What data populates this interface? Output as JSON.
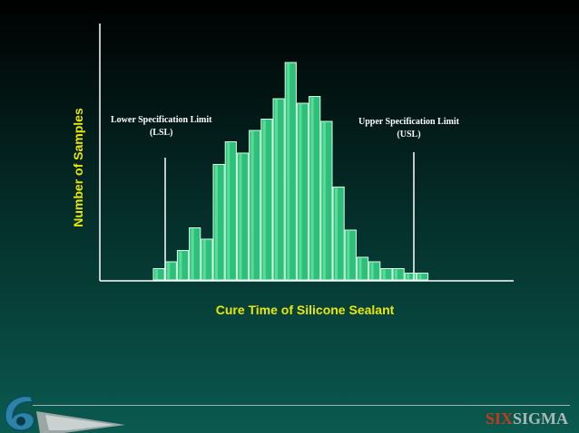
{
  "chart_data": {
    "type": "bar",
    "title": "",
    "xlabel": "Cure Time of Silicone Sealant",
    "ylabel": "Number of Samples",
    "ylim": [
      0,
      100
    ],
    "values": [
      5,
      8,
      13,
      23,
      18,
      51,
      61,
      56,
      66,
      71,
      80,
      96,
      78,
      81,
      70,
      41,
      22,
      10,
      8,
      5,
      5,
      3,
      3
    ],
    "grid": false,
    "annotations": [
      {
        "lines": [
          "Lower Specification Limit",
          "(LSL)"
        ]
      },
      {
        "lines": [
          "Upper Specification Limit",
          "(USL)"
        ]
      }
    ],
    "bar_color": "#2ec07a"
  },
  "brand": {
    "part1": "SIX",
    "part2": "SIGMA",
    "color1": "#c13b18",
    "color2": "#aab8b5"
  },
  "logo_icon": "six-sigma-logo-icon"
}
